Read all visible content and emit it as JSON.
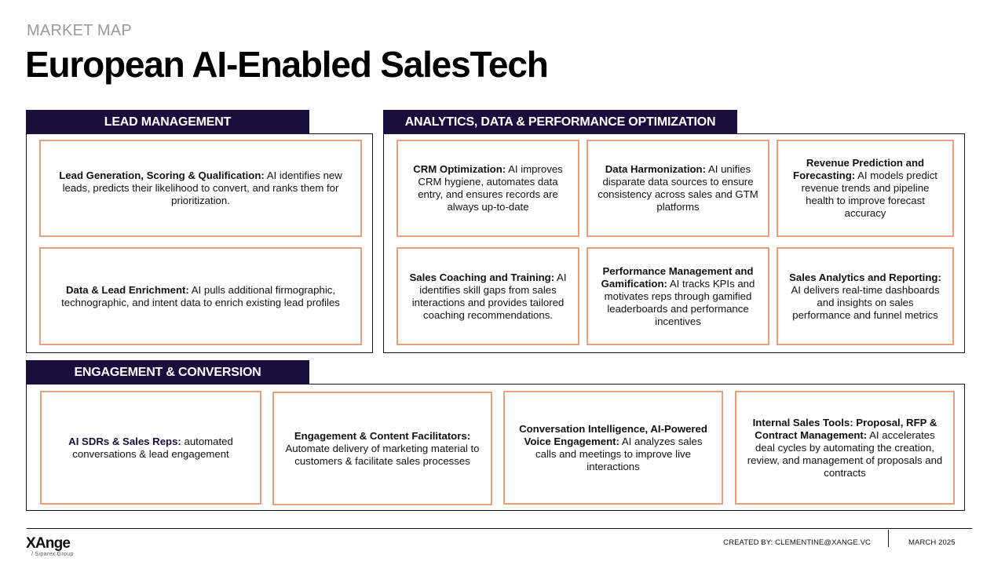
{
  "header": {
    "kicker": "MARKET MAP",
    "title": "European AI-Enabled SalesTech"
  },
  "sections": {
    "lead_management": {
      "title": "LEAD MANAGEMENT",
      "cards": [
        {
          "title": "Lead Generation, Scoring & Qualification:",
          "body": " AI identifies new leads, predicts their likelihood to convert, and ranks them for prioritization."
        },
        {
          "title": "Data & Lead Enrichment:",
          "body": " AI pulls additional firmographic, technographic, and intent data to enrich existing lead profiles"
        }
      ]
    },
    "analytics": {
      "title": "ANALYTICS, DATA & PERFORMANCE OPTIMIZATION",
      "cards": [
        {
          "title": "CRM Optimization:",
          "body": " AI improves CRM hygiene, automates data entry, and ensures records are always up-to-date"
        },
        {
          "title": "Data Harmonization:",
          "body": " AI unifies disparate data sources to ensure consistency across sales and GTM platforms"
        },
        {
          "title": "Revenue Prediction and Forecasting:",
          "body": " AI models predict revenue trends and pipeline health to improve forecast accuracy"
        },
        {
          "title": "Sales Coaching and Training:",
          "body": " AI identifies skill gaps from sales interactions and provides tailored coaching recommendations."
        },
        {
          "title": "Performance Management and Gamification:",
          "body": " AI tracks KPIs and motivates reps through gamified leaderboards and performance incentives"
        },
        {
          "title": "Sales Analytics and Reporting:",
          "body": " AI delivers real-time dashboards and insights on sales performance and funnel metrics"
        }
      ]
    },
    "engagement": {
      "title": "ENGAGEMENT & CONVERSION",
      "cards": [
        {
          "title": "AI SDRs & Sales Reps:",
          "body": " automated conversations & lead engagement"
        },
        {
          "title": "Engagement & Content Facilitators:",
          "body": " Automate delivery of marketing material to customers & facilitate sales processes"
        },
        {
          "title": "Conversation Intelligence, AI-Powered Voice Engagement:",
          "body": " AI analyzes sales calls and meetings to improve live interactions"
        },
        {
          "title": "Internal Sales Tools: Proposal, RFP & Contract Management:",
          "body": " AI accelerates deal cycles by automating the creation, review, and management of proposals and contracts"
        }
      ]
    }
  },
  "footer": {
    "logo": "XAnge",
    "logo_sub": "/ Siparex Group",
    "credit": "CREATED BY: CLEMENTINE@XANGE.VC",
    "date": "MARCH 2025"
  },
  "colors": {
    "header_fill": "#1a0f3c",
    "card_border": "#e8a07c",
    "kicker": "#9a9a9a"
  }
}
